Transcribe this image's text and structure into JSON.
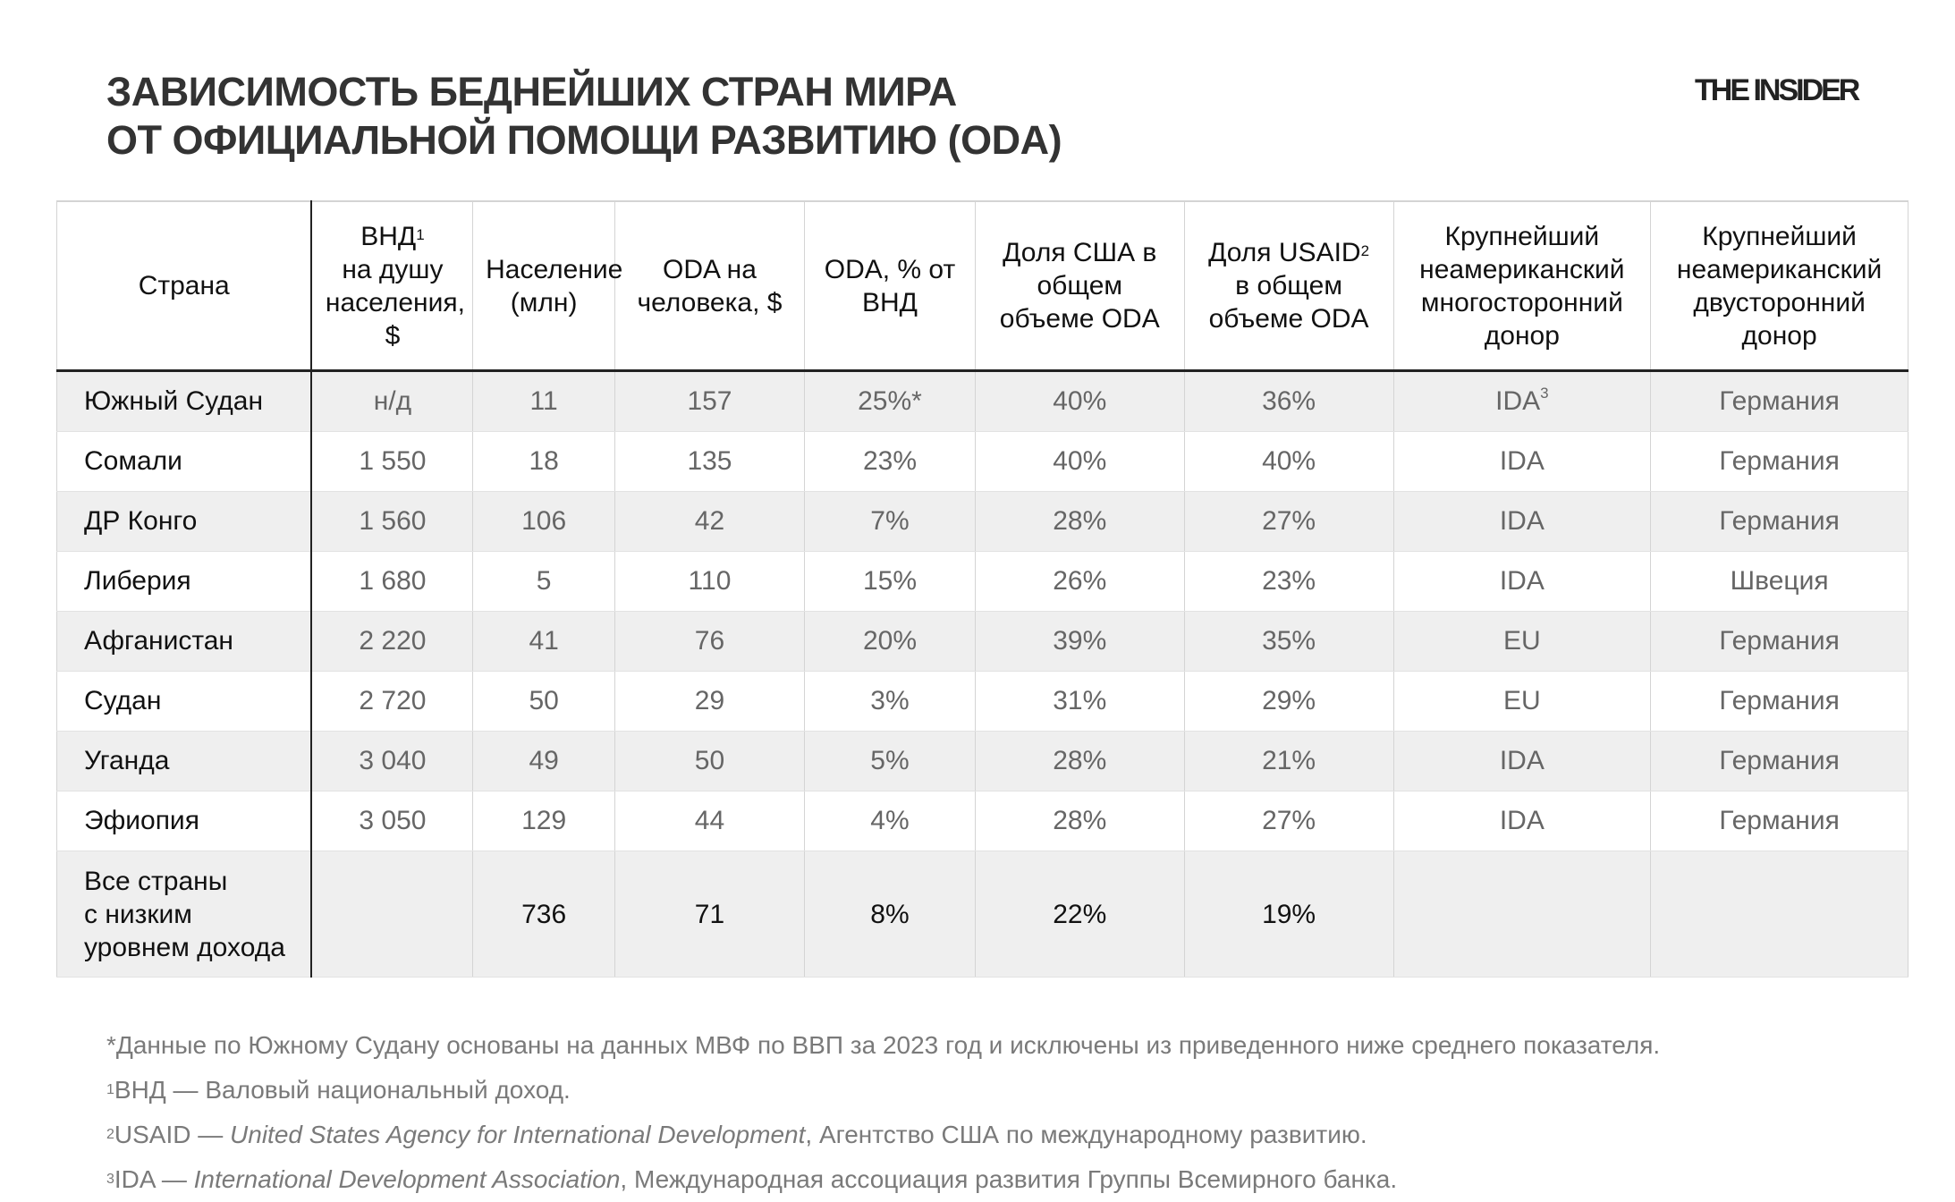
{
  "title": {
    "line1": "ЗАВИСИМОСТЬ БЕДНЕЙШИХ СТРАН МИРА",
    "line2": "ОТ ОФИЦИАЛЬНОЙ ПОМОЩИ РАЗВИТИЮ (ODA)"
  },
  "logo": "THE INSIDER",
  "table": {
    "headers": [
      {
        "text": "Страна"
      },
      {
        "text": "ВНД",
        "sup": "1",
        "rest": "на душу населения, $"
      },
      {
        "text": "Население (млн)"
      },
      {
        "text": "ODA на человека, $"
      },
      {
        "text": "ODA, % от ВНД"
      },
      {
        "text": "Доля США в общем объеме ODA"
      },
      {
        "text": "Доля USAID",
        "sup": "2",
        "rest": "в общем объеме ODA"
      },
      {
        "text": "Крупнейший неамериканский многосторонний донор"
      },
      {
        "text": "Крупнейший неамериканский двусторонний донор"
      }
    ],
    "rows": [
      {
        "country": "Южный Судан",
        "gni": "н/д",
        "pop": "11",
        "oda_pc": "157",
        "oda_gni": "25%*",
        "us": "40%",
        "usaid": "36%",
        "multi": "IDA",
        "multi_sup": "3",
        "bi": "Германия"
      },
      {
        "country": "Сомали",
        "gni": "1 550",
        "pop": "18",
        "oda_pc": "135",
        "oda_gni": "23%",
        "us": "40%",
        "usaid": "40%",
        "multi": "IDA",
        "bi": "Германия"
      },
      {
        "country": "ДР Конго",
        "gni": "1 560",
        "pop": "106",
        "oda_pc": "42",
        "oda_gni": "7%",
        "us": "28%",
        "usaid": "27%",
        "multi": "IDA",
        "bi": "Германия"
      },
      {
        "country": "Либерия",
        "gni": "1 680",
        "pop": "5",
        "oda_pc": "110",
        "oda_gni": "15%",
        "us": "26%",
        "usaid": "23%",
        "multi": "IDA",
        "bi": "Швеция"
      },
      {
        "country": "Афганистан",
        "gni": "2 220",
        "pop": "41",
        "oda_pc": "76",
        "oda_gni": "20%",
        "us": "39%",
        "usaid": "35%",
        "multi": "EU",
        "bi": "Германия"
      },
      {
        "country": "Судан",
        "gni": "2 720",
        "pop": "50",
        "oda_pc": "29",
        "oda_gni": "3%",
        "us": "31%",
        "usaid": "29%",
        "multi": "EU",
        "bi": "Германия"
      },
      {
        "country": "Уганда",
        "gni": "3 040",
        "pop": "49",
        "oda_pc": "50",
        "oda_gni": "5%",
        "us": "28%",
        "usaid": "21%",
        "multi": "IDA",
        "bi": "Германия"
      },
      {
        "country": "Эфиопия",
        "gni": "3 050",
        "pop": "129",
        "oda_pc": "44",
        "oda_gni": "4%",
        "us": "28%",
        "usaid": "27%",
        "multi": "IDA",
        "bi": "Германия"
      }
    ],
    "total": {
      "country_l1": "Все страны",
      "country_l2": "с низким",
      "country_l3": "уровнем дохода",
      "gni": "",
      "pop": "736",
      "oda_pc": "71",
      "oda_gni": "8%",
      "us": "22%",
      "usaid": "19%",
      "multi": "",
      "bi": ""
    }
  },
  "notes": {
    "n0": "*Данные по Южному Судану основаны на данных МВФ по ВВП за 2023 год и исключены из приведенного ниже среднего показателя.",
    "n1_sup": "1",
    "n1": "ВНД — Валовый национальный доход.",
    "n2_sup": "2",
    "n2_a": "USAID — ",
    "n2_i": "United States Agency for International Development",
    "n2_b": ", Агентство США по международному развитию.",
    "n3_sup": "3",
    "n3_a": "IDA — ",
    "n3_i": "International Development Association",
    "n3_b": ", Международная ассоциация развития Группы Всемирного банка."
  }
}
